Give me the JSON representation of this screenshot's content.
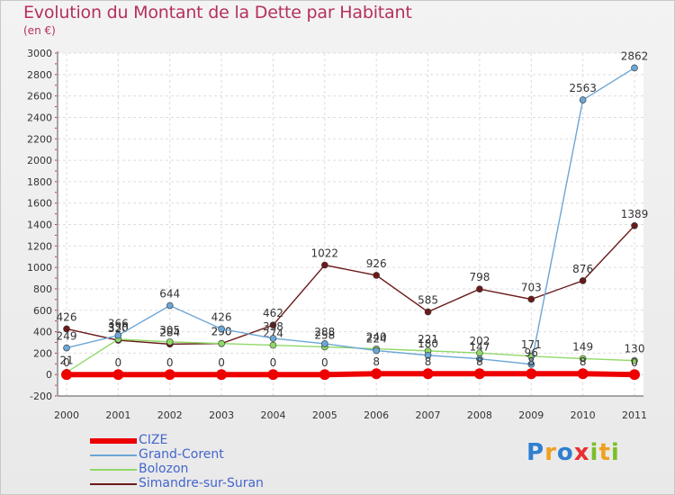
{
  "title": "Evolution du Montant de la Dette par Habitant",
  "unit": "(en €)",
  "logo": {
    "letters": [
      {
        "ch": "P",
        "color": "#2f7fd0"
      },
      {
        "ch": "r",
        "color": "#f0a020"
      },
      {
        "ch": "o",
        "color": "#2f7fd0"
      },
      {
        "ch": "x",
        "color": "#e83030"
      },
      {
        "ch": "i",
        "color": "#7bbf2a"
      },
      {
        "ch": "t",
        "color": "#f0a020"
      },
      {
        "ch": "i",
        "color": "#7bbf2a"
      }
    ]
  },
  "chart_data": {
    "type": "line",
    "x": [
      "2000",
      "2001",
      "2002",
      "2003",
      "2004",
      "2005",
      "2006",
      "2007",
      "2008",
      "2009",
      "2010",
      "2011"
    ],
    "ylim": [
      -200,
      3000
    ],
    "yticks": [
      -200,
      0,
      200,
      400,
      600,
      800,
      1000,
      1200,
      1400,
      1600,
      1800,
      2000,
      2200,
      2400,
      2600,
      2800,
      3000
    ],
    "grid": true,
    "legend_position": "bottom-left",
    "series": [
      {
        "name": "Simandre-sur-Suran",
        "color": "#6b1a1a",
        "values": [
          426,
          320,
          284,
          290,
          462,
          1022,
          926,
          585,
          798,
          703,
          876,
          1389
        ]
      },
      {
        "name": "Bolozon",
        "color": "#90d868",
        "values": [
          21,
          330,
          305,
          290,
          274,
          258,
          240,
          221,
          202,
          171,
          149,
          130
        ]
      },
      {
        "name": "Grand-Corent",
        "color": "#6ba6d6",
        "values": [
          249,
          366,
          644,
          426,
          338,
          288,
          224,
          180,
          147,
          96,
          2563,
          2862
        ]
      },
      {
        "name": "CIZE",
        "color": "#ee0000",
        "values": [
          0,
          0,
          0,
          0,
          0,
          0,
          8,
          8,
          8,
          8,
          8,
          0
        ]
      }
    ],
    "legend": [
      "CIZE",
      "Grand-Corent",
      "Bolozon",
      "Simandre-sur-Suran"
    ]
  }
}
